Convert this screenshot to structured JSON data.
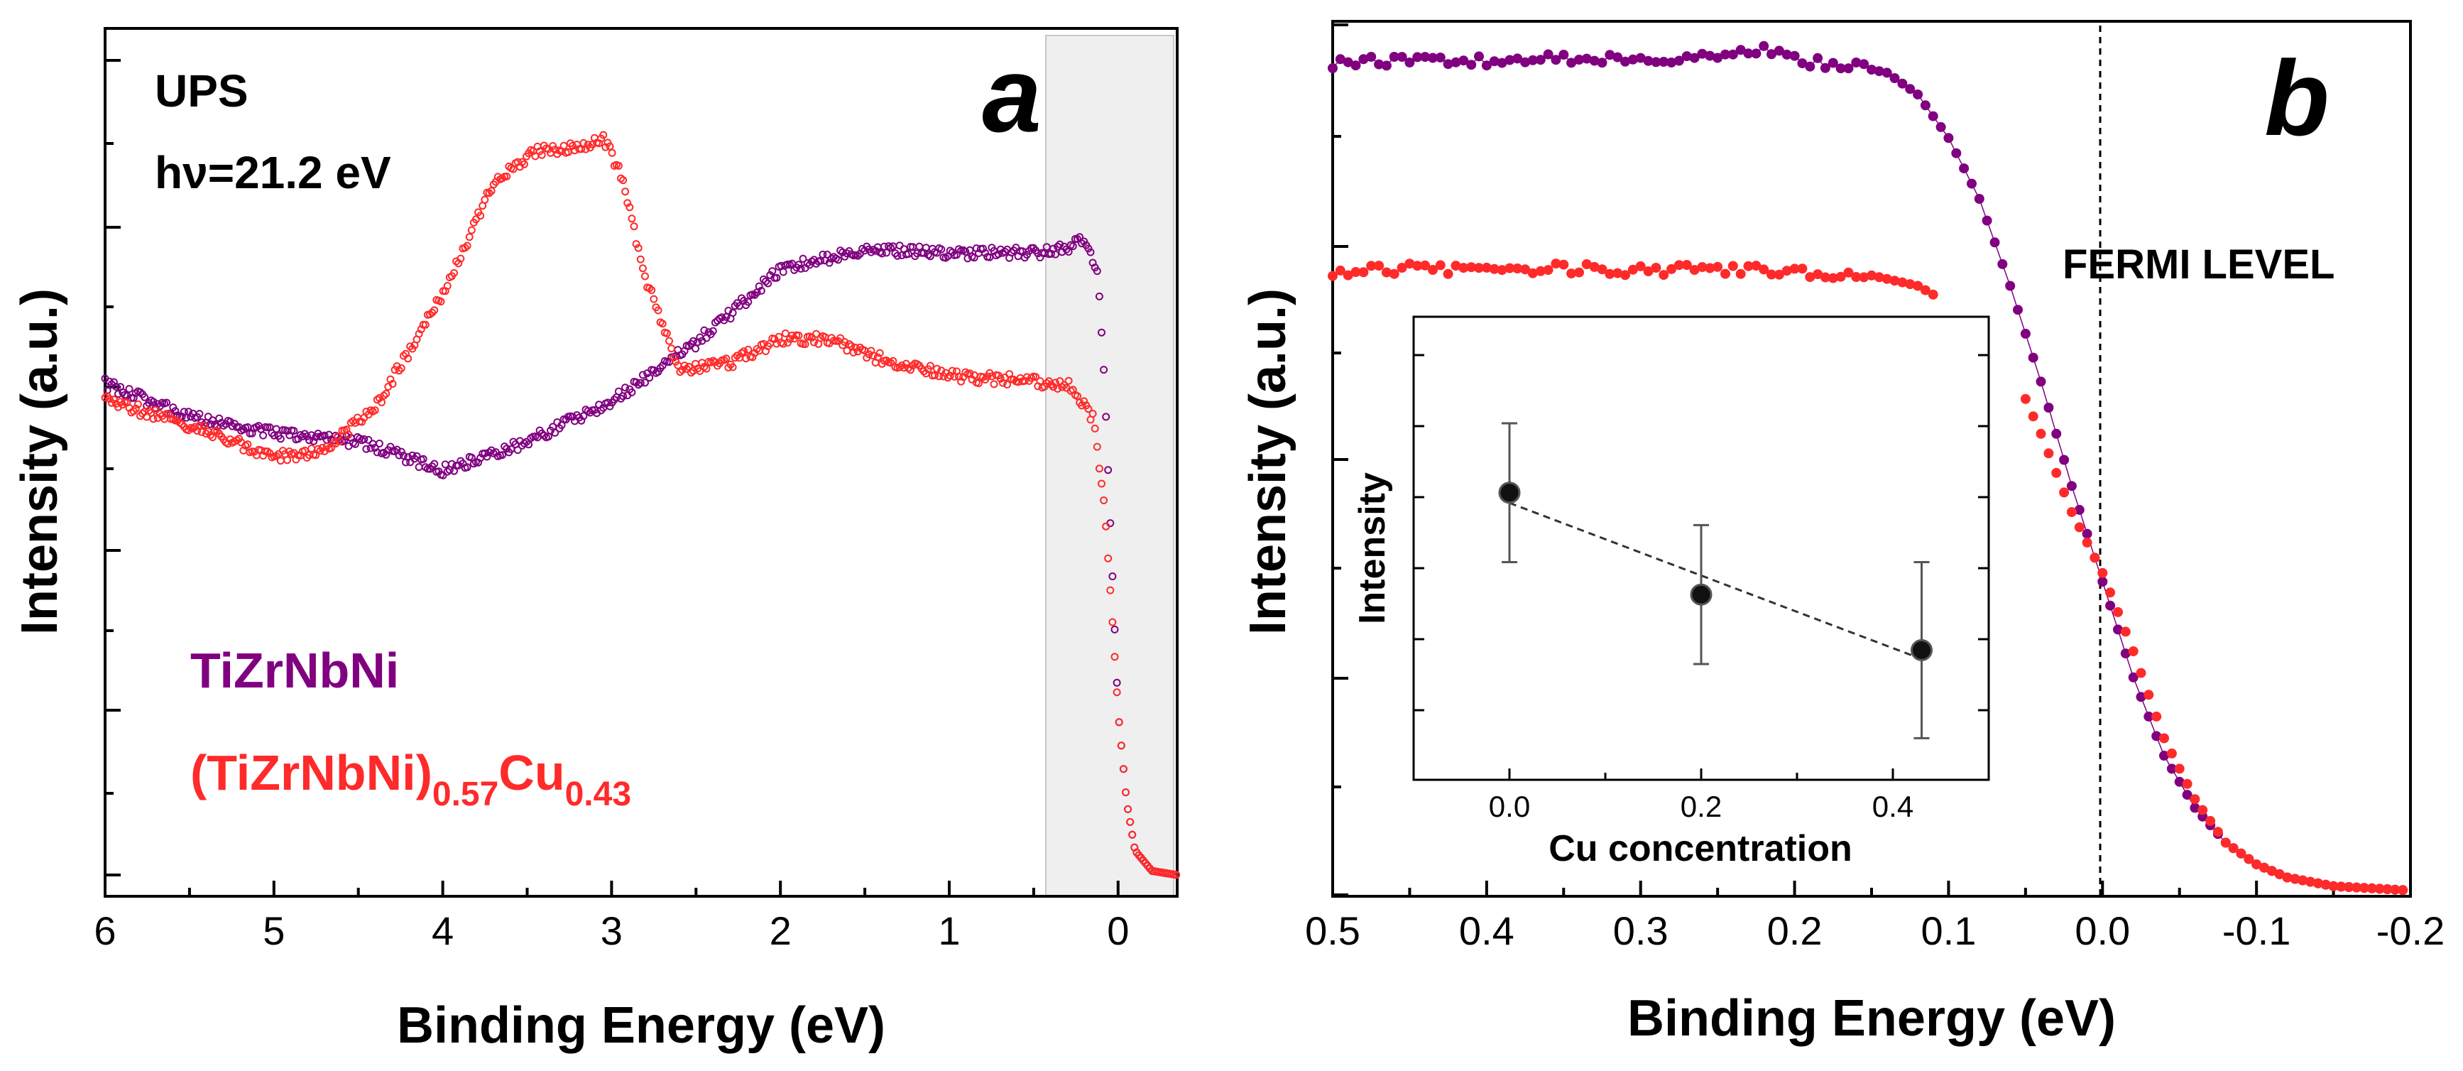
{
  "colors": {
    "ti_series": "#800080",
    "cu_series": "#ff2a2a",
    "shade": "#efefef",
    "axis": "#000000",
    "inset_fit": "#333333"
  },
  "chart_data": [
    {
      "type": "scatter",
      "panel_label": "a",
      "annotation_lines": [
        "UPS",
        "hν=21.2 eV"
      ],
      "xlabel": "Binding Energy (eV)",
      "ylabel": "Intensity (a.u.)",
      "xlim": [
        6,
        -0.35
      ],
      "ylim": [
        0,
        1
      ],
      "x_ticks": [
        "6",
        "5",
        "4",
        "3",
        "2",
        "1",
        "0"
      ],
      "x_tick_values": [
        6,
        5,
        4,
        3,
        2,
        1,
        0
      ],
      "shaded_region": [
        0.45,
        -0.35
      ],
      "legend": [
        {
          "text": "TiZrNbNi",
          "color": "#800080"
        },
        {
          "text_main": "(TiZrNbNi)",
          "sub1": "0.57",
          "text_mid": "Cu",
          "sub2": "0.43",
          "color": "#ff2a2a"
        }
      ],
      "series": [
        {
          "name": "TiZrNbNi",
          "x": [
            6.0,
            5.5,
            5.0,
            4.5,
            4.0,
            3.5,
            3.0,
            2.5,
            2.0,
            1.5,
            1.0,
            0.5,
            0.3,
            0.2,
            0.12,
            0.08,
            0.03,
            0.0,
            -0.05,
            -0.1,
            -0.2,
            -0.35
          ],
          "y": [
            0.6,
            0.56,
            0.54,
            0.53,
            0.495,
            0.53,
            0.58,
            0.65,
            0.74,
            0.765,
            0.76,
            0.76,
            0.765,
            0.78,
            0.74,
            0.6,
            0.35,
            0.2,
            0.09,
            0.03,
            0.005,
            0.0
          ]
        },
        {
          "name": "(TiZrNbNi)0.57Cu0.43",
          "x": [
            6.0,
            5.5,
            5.0,
            4.7,
            4.4,
            4.0,
            3.7,
            3.45,
            3.2,
            3.05,
            2.95,
            2.8,
            2.6,
            2.3,
            2.0,
            1.7,
            1.4,
            1.0,
            0.6,
            0.3,
            0.15,
            0.08,
            0.03,
            0.0,
            -0.05,
            -0.1,
            -0.2,
            -0.35
          ],
          "y": [
            0.58,
            0.55,
            0.51,
            0.52,
            0.57,
            0.71,
            0.845,
            0.885,
            0.89,
            0.9,
            0.86,
            0.73,
            0.615,
            0.625,
            0.655,
            0.655,
            0.63,
            0.61,
            0.605,
            0.6,
            0.56,
            0.45,
            0.3,
            0.2,
            0.09,
            0.03,
            0.005,
            0.0
          ]
        }
      ]
    },
    {
      "type": "scatter",
      "panel_label": "b",
      "annotation": "FERMI LEVEL",
      "xlabel": "Binding Energy (eV)",
      "ylabel": "Intensity (a.u.)",
      "xlim": [
        0.5,
        -0.2
      ],
      "ylim": [
        0,
        1
      ],
      "x_ticks": [
        "0.5",
        "0.4",
        "0.3",
        "0.2",
        "0.1",
        "0.0",
        "-0.1",
        "-0.2"
      ],
      "x_tick_values": [
        0.5,
        0.4,
        0.3,
        0.2,
        0.1,
        0.0,
        -0.1,
        -0.2
      ],
      "fermi_level_x": 0.0,
      "series": [
        {
          "name": "TiZrNbNi",
          "x": [
            0.5,
            0.45,
            0.4,
            0.35,
            0.3,
            0.25,
            0.22,
            0.2,
            0.18,
            0.16,
            0.14,
            0.12,
            0.1,
            0.08,
            0.06,
            0.04,
            0.02,
            0.0,
            -0.02,
            -0.04,
            -0.06,
            -0.08,
            -0.1,
            -0.12,
            -0.15,
            -0.2
          ],
          "y": [
            0.955,
            0.96,
            0.958,
            0.962,
            0.96,
            0.965,
            0.972,
            0.96,
            0.955,
            0.952,
            0.945,
            0.92,
            0.87,
            0.8,
            0.7,
            0.59,
            0.47,
            0.36,
            0.25,
            0.16,
            0.1,
            0.06,
            0.035,
            0.02,
            0.01,
            0.005
          ]
        },
        {
          "name": "(TiZrNbNi)0.57Cu0.43",
          "x": [
            0.5,
            0.45,
            0.4,
            0.35,
            0.3,
            0.25,
            0.2,
            0.15,
            0.12,
            0.11,
            0.05,
            0.04,
            0.02,
            0.0,
            -0.02,
            -0.04,
            -0.06,
            -0.08,
            -0.1,
            -0.12,
            -0.15,
            -0.2
          ],
          "y": [
            0.715,
            0.72,
            0.718,
            0.72,
            0.718,
            0.72,
            0.715,
            0.712,
            0.7,
            0.69,
            0.57,
            0.53,
            0.44,
            0.37,
            0.28,
            0.18,
            0.11,
            0.06,
            0.035,
            0.02,
            0.01,
            0.005
          ]
        }
      ],
      "inset": {
        "type": "scatter",
        "xlabel": "Cu concentration",
        "ylabel": "Intensity",
        "xlim": [
          -0.1,
          0.5
        ],
        "ylim": [
          0,
          1
        ],
        "x_ticks": [
          "0.0",
          "0.2",
          "0.4"
        ],
        "x_tick_values": [
          0.0,
          0.2,
          0.4
        ],
        "points": [
          {
            "x": 0.0,
            "y": 0.62,
            "err": 0.15
          },
          {
            "x": 0.2,
            "y": 0.4,
            "err": 0.15
          },
          {
            "x": 0.43,
            "y": 0.28,
            "err": 0.19
          }
        ],
        "fit_line": true
      }
    }
  ]
}
